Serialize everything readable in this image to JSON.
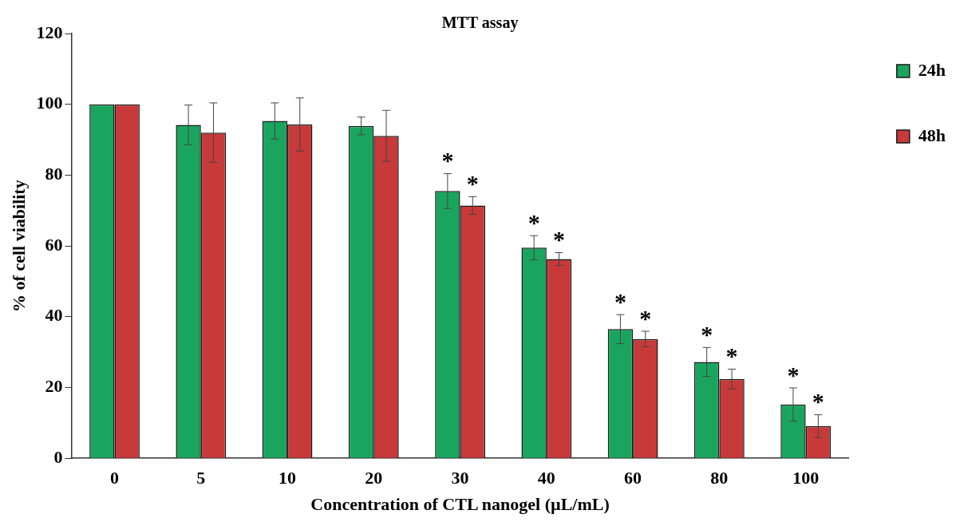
{
  "chart_data": {
    "type": "bar",
    "title": "MTT assay",
    "xlabel": "Concentration of CTL nanogel (µL/mL)",
    "ylabel": "% of cell viability",
    "categories": [
      "0",
      "5",
      "10",
      "20",
      "30",
      "40",
      "60",
      "80",
      "100"
    ],
    "series": [
      {
        "name": "24h",
        "color": "#1aa55e",
        "values": [
          100,
          94.2,
          95.3,
          93.9,
          75.5,
          59.5,
          36.5,
          27.2,
          15.2
        ],
        "errors": [
          null,
          5.6,
          5.1,
          2.5,
          4.9,
          3.4,
          4.1,
          4.1,
          4.7
        ]
      },
      {
        "name": "48h",
        "color": "#c8393a",
        "values": [
          100,
          92.0,
          94.3,
          91.1,
          71.4,
          56.3,
          33.7,
          22.4,
          9.1
        ],
        "errors": [
          null,
          8.4,
          7.5,
          7.2,
          2.5,
          1.8,
          2.2,
          2.8,
          3.2
        ]
      }
    ],
    "ylim": [
      0,
      120
    ],
    "yticks": [
      0,
      20,
      40,
      60,
      80,
      100,
      120
    ],
    "grid": false,
    "legend": "top right",
    "annotations": [
      "*",
      "*",
      "*",
      "*",
      "*",
      "*",
      "*",
      "*",
      "*",
      "*"
    ]
  }
}
